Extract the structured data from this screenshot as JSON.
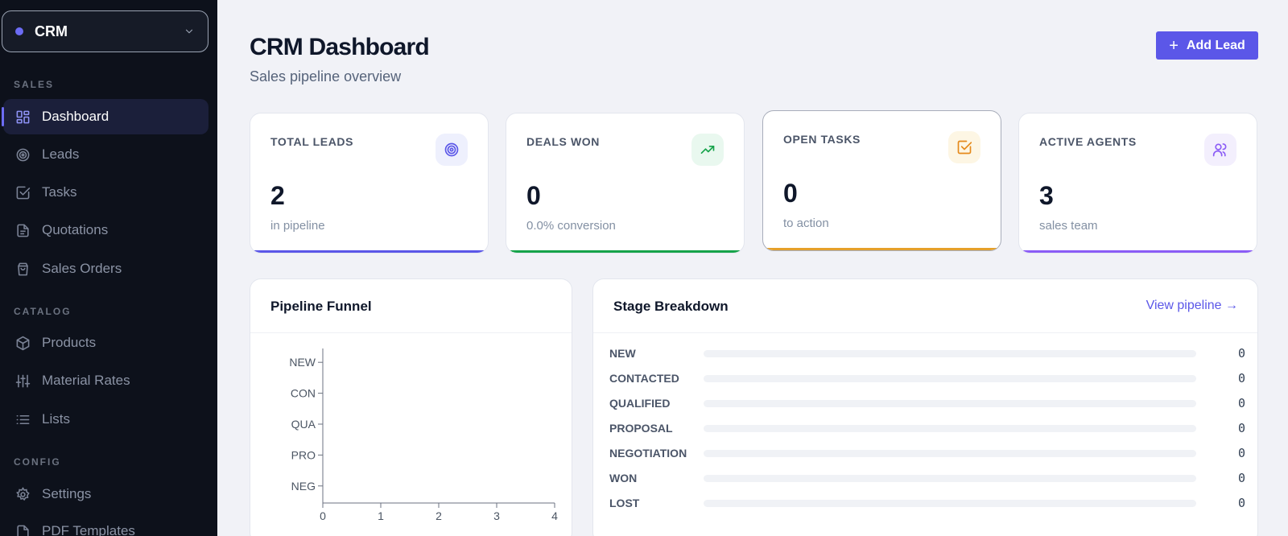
{
  "sidebar": {
    "workspace": "CRM",
    "sections": [
      {
        "label": "SALES",
        "items": [
          {
            "label": "Dashboard",
            "icon": "layout-grid-icon",
            "active": true
          },
          {
            "label": "Leads",
            "icon": "target-icon"
          },
          {
            "label": "Tasks",
            "icon": "check-square-icon"
          },
          {
            "label": "Quotations",
            "icon": "document-icon"
          },
          {
            "label": "Sales Orders",
            "icon": "shopping-bag-icon"
          }
        ]
      },
      {
        "label": "CATALOG",
        "items": [
          {
            "label": "Products",
            "icon": "box-icon"
          },
          {
            "label": "Material Rates",
            "icon": "sliders-icon"
          },
          {
            "label": "Lists",
            "icon": "list-icon"
          }
        ]
      },
      {
        "label": "CONFIG",
        "items": [
          {
            "label": "Settings",
            "icon": "gear-icon"
          },
          {
            "label": "PDF Templates",
            "icon": "document-icon"
          }
        ]
      }
    ]
  },
  "header": {
    "title": "CRM Dashboard",
    "subtitle": "Sales pipeline overview",
    "add_button": "Add Lead"
  },
  "stats": [
    {
      "label": "TOTAL LEADS",
      "value": "2",
      "hint": "in pipeline",
      "icon": "target-icon",
      "accent": "#5b57e8",
      "icon_bg": "#eef0fd"
    },
    {
      "label": "DEALS WON",
      "value": "0",
      "hint": "0.0% conversion",
      "icon": "trending-up-icon",
      "accent": "#16a34a",
      "icon_bg": "#e9f8ef"
    },
    {
      "label": "OPEN TASKS",
      "value": "0",
      "hint": "to action",
      "icon": "check-square-icon",
      "accent": "#e5a02a",
      "icon_bg": "#fdf6e4"
    },
    {
      "label": "ACTIVE AGENTS",
      "value": "3",
      "hint": "sales team",
      "icon": "users-icon",
      "accent": "#8b5cf6",
      "icon_bg": "#f3effd"
    }
  ],
  "funnel": {
    "title": "Pipeline Funnel",
    "chart_data": {
      "type": "bar",
      "orientation": "horizontal",
      "categories": [
        "NEW",
        "CON",
        "QUA",
        "PRO",
        "NEG"
      ],
      "values": [
        0,
        0,
        0,
        0,
        0
      ],
      "xlim": [
        0,
        4
      ],
      "xticks": [
        "0",
        "1",
        "2",
        "3",
        "4"
      ]
    }
  },
  "breakdown": {
    "title": "Stage Breakdown",
    "link": "View pipeline →",
    "stages": [
      {
        "label": "NEW",
        "count": "0",
        "fraction": 0
      },
      {
        "label": "CONTACTED",
        "count": "0",
        "fraction": 0
      },
      {
        "label": "QUALIFIED",
        "count": "0",
        "fraction": 0
      },
      {
        "label": "PROPOSAL",
        "count": "0",
        "fraction": 0
      },
      {
        "label": "NEGOTIATION",
        "count": "0",
        "fraction": 0
      },
      {
        "label": "WON",
        "count": "0",
        "fraction": 0
      },
      {
        "label": "LOST",
        "count": "0",
        "fraction": 0
      }
    ]
  }
}
